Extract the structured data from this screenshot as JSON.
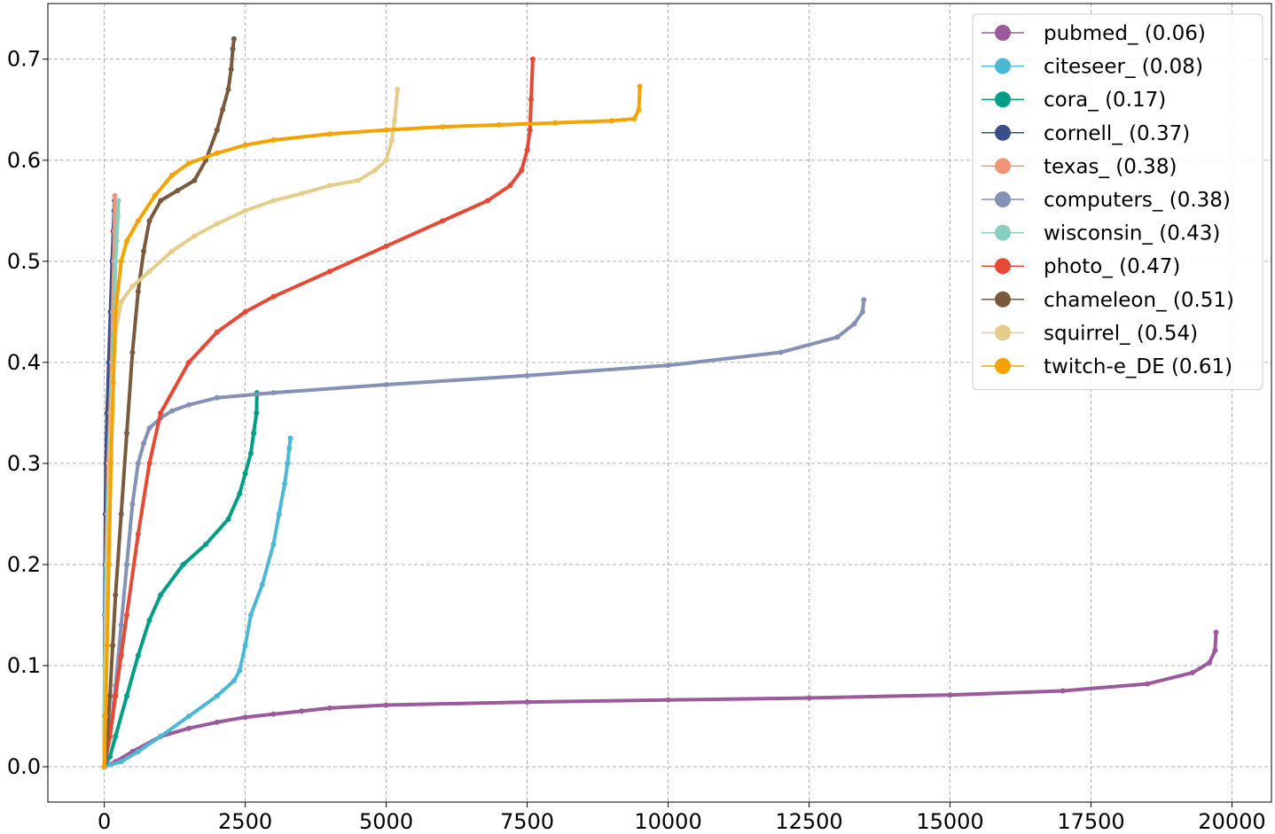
{
  "chart_data": {
    "type": "scatter",
    "title": "",
    "xlabel": "",
    "ylabel": "",
    "xlim": [
      -1000,
      20700
    ],
    "ylim": [
      -0.035,
      0.755
    ],
    "x_ticks": [
      0,
      2500,
      5000,
      7500,
      10000,
      12500,
      15000,
      17500,
      20000
    ],
    "y_ticks": [
      0.0,
      0.1,
      0.2,
      0.3,
      0.4,
      0.5,
      0.6,
      0.7
    ],
    "x_tick_labels": [
      "0",
      "2500",
      "5000",
      "7500",
      "10000",
      "12500",
      "15000",
      "17500",
      "20000"
    ],
    "y_tick_labels": [
      "0.0",
      "0.1",
      "0.2",
      "0.3",
      "0.4",
      "0.5",
      "0.6",
      "0.7"
    ],
    "grid": true,
    "legend_position": "top-right",
    "series": [
      {
        "name": "pubmed_ (0.06)",
        "color": "#9b5a9b",
        "x": [
          0,
          200,
          500,
          1000,
          1500,
          2000,
          2500,
          3000,
          3500,
          4000,
          5000,
          7500,
          10000,
          12500,
          15000,
          17000,
          18500,
          19300,
          19600,
          19700,
          19717
        ],
        "y": [
          0.0,
          0.005,
          0.015,
          0.03,
          0.038,
          0.044,
          0.049,
          0.052,
          0.055,
          0.058,
          0.061,
          0.064,
          0.066,
          0.068,
          0.071,
          0.075,
          0.082,
          0.093,
          0.103,
          0.115,
          0.133
        ]
      },
      {
        "name": "citeseer_ (0.08)",
        "color": "#4db8d4",
        "x": [
          0,
          300,
          600,
          1000,
          1500,
          2000,
          2300,
          2400,
          2500,
          2600,
          2800,
          3000,
          3100,
          3200,
          3250,
          3280,
          3300
        ],
        "y": [
          0.0,
          0.005,
          0.015,
          0.03,
          0.05,
          0.07,
          0.085,
          0.095,
          0.12,
          0.15,
          0.18,
          0.22,
          0.25,
          0.28,
          0.3,
          0.315,
          0.325
        ]
      },
      {
        "name": "cora_ (0.17)",
        "color": "#009e85",
        "x": [
          0,
          100,
          200,
          400,
          600,
          800,
          1000,
          1400,
          1800,
          2200,
          2400,
          2500,
          2600,
          2650,
          2700,
          2708
        ],
        "y": [
          0.0,
          0.01,
          0.03,
          0.07,
          0.11,
          0.145,
          0.17,
          0.2,
          0.22,
          0.245,
          0.27,
          0.29,
          0.31,
          0.33,
          0.35,
          0.37
        ]
      },
      {
        "name": "cornell_ (0.37)",
        "color": "#3a4f8a",
        "x": [
          0,
          3,
          6,
          10,
          15,
          20,
          30,
          50,
          80,
          110,
          140,
          160,
          175,
          183
        ],
        "y": [
          0.0,
          0.05,
          0.1,
          0.15,
          0.2,
          0.25,
          0.3,
          0.35,
          0.4,
          0.45,
          0.5,
          0.53,
          0.55,
          0.56
        ]
      },
      {
        "name": "texas_ (0.38)",
        "color": "#f0957a",
        "x": [
          0,
          5,
          10,
          20,
          30,
          50,
          70,
          100,
          130,
          150,
          170,
          180,
          187
        ],
        "y": [
          0.0,
          0.05,
          0.1,
          0.15,
          0.2,
          0.25,
          0.3,
          0.35,
          0.4,
          0.45,
          0.5,
          0.53,
          0.565
        ]
      },
      {
        "name": "computers_ (0.38)",
        "color": "#8591b5",
        "x": [
          0,
          100,
          200,
          300,
          400,
          500,
          600,
          700,
          800,
          1000,
          1200,
          1500,
          2000,
          3000,
          5000,
          7500,
          10000,
          12000,
          13000,
          13300,
          13450,
          13471
        ],
        "y": [
          0.0,
          0.03,
          0.08,
          0.14,
          0.2,
          0.26,
          0.3,
          0.32,
          0.335,
          0.345,
          0.352,
          0.358,
          0.365,
          0.37,
          0.378,
          0.387,
          0.397,
          0.41,
          0.425,
          0.438,
          0.45,
          0.462
        ]
      },
      {
        "name": "wisconsin_ (0.43)",
        "color": "#88cfbf",
        "x": [
          0,
          5,
          10,
          20,
          40,
          60,
          90,
          120,
          150,
          180,
          200,
          220,
          240,
          251
        ],
        "y": [
          0.0,
          0.05,
          0.1,
          0.15,
          0.2,
          0.25,
          0.3,
          0.35,
          0.4,
          0.45,
          0.5,
          0.52,
          0.545,
          0.56
        ]
      },
      {
        "name": "photo_ (0.47)",
        "color": "#e64a36",
        "x": [
          0,
          100,
          200,
          300,
          400,
          600,
          800,
          1000,
          1500,
          2000,
          2500,
          3000,
          4000,
          5000,
          6000,
          6800,
          7200,
          7400,
          7500,
          7550,
          7570,
          7600
        ],
        "y": [
          0.0,
          0.03,
          0.07,
          0.11,
          0.15,
          0.23,
          0.3,
          0.35,
          0.4,
          0.43,
          0.45,
          0.465,
          0.49,
          0.515,
          0.54,
          0.56,
          0.575,
          0.59,
          0.61,
          0.63,
          0.66,
          0.7
        ]
      },
      {
        "name": "chameleon_ (0.51)",
        "color": "#7a5a3d",
        "x": [
          0,
          50,
          100,
          150,
          200,
          300,
          400,
          500,
          600,
          700,
          800,
          1000,
          1300,
          1600,
          1800,
          2000,
          2100,
          2200,
          2250,
          2280,
          2300
        ],
        "y": [
          0.0,
          0.03,
          0.07,
          0.12,
          0.17,
          0.25,
          0.33,
          0.41,
          0.47,
          0.51,
          0.54,
          0.56,
          0.57,
          0.58,
          0.6,
          0.63,
          0.65,
          0.67,
          0.69,
          0.71,
          0.72
        ]
      },
      {
        "name": "squirrel_ (0.54)",
        "color": "#e5cd8c",
        "x": [
          0,
          30,
          60,
          100,
          150,
          200,
          300,
          500,
          800,
          1200,
          1600,
          2000,
          2500,
          3000,
          3500,
          4000,
          4500,
          4800,
          5000,
          5100,
          5150,
          5201
        ],
        "y": [
          0.0,
          0.1,
          0.2,
          0.3,
          0.38,
          0.43,
          0.46,
          0.475,
          0.49,
          0.51,
          0.525,
          0.537,
          0.55,
          0.56,
          0.567,
          0.575,
          0.58,
          0.59,
          0.6,
          0.62,
          0.64,
          0.67
        ]
      },
      {
        "name": "twitch-e_DE (0.61)",
        "color": "#f5a300",
        "x": [
          0,
          20,
          50,
          80,
          120,
          160,
          200,
          300,
          400,
          600,
          900,
          1200,
          1500,
          2000,
          2500,
          3000,
          4000,
          5000,
          6000,
          7000,
          8000,
          9000,
          9400,
          9480,
          9498
        ],
        "y": [
          0.0,
          0.05,
          0.12,
          0.2,
          0.3,
          0.38,
          0.45,
          0.5,
          0.52,
          0.54,
          0.565,
          0.585,
          0.597,
          0.607,
          0.615,
          0.62,
          0.626,
          0.63,
          0.633,
          0.635,
          0.637,
          0.639,
          0.641,
          0.65,
          0.673
        ]
      }
    ]
  }
}
